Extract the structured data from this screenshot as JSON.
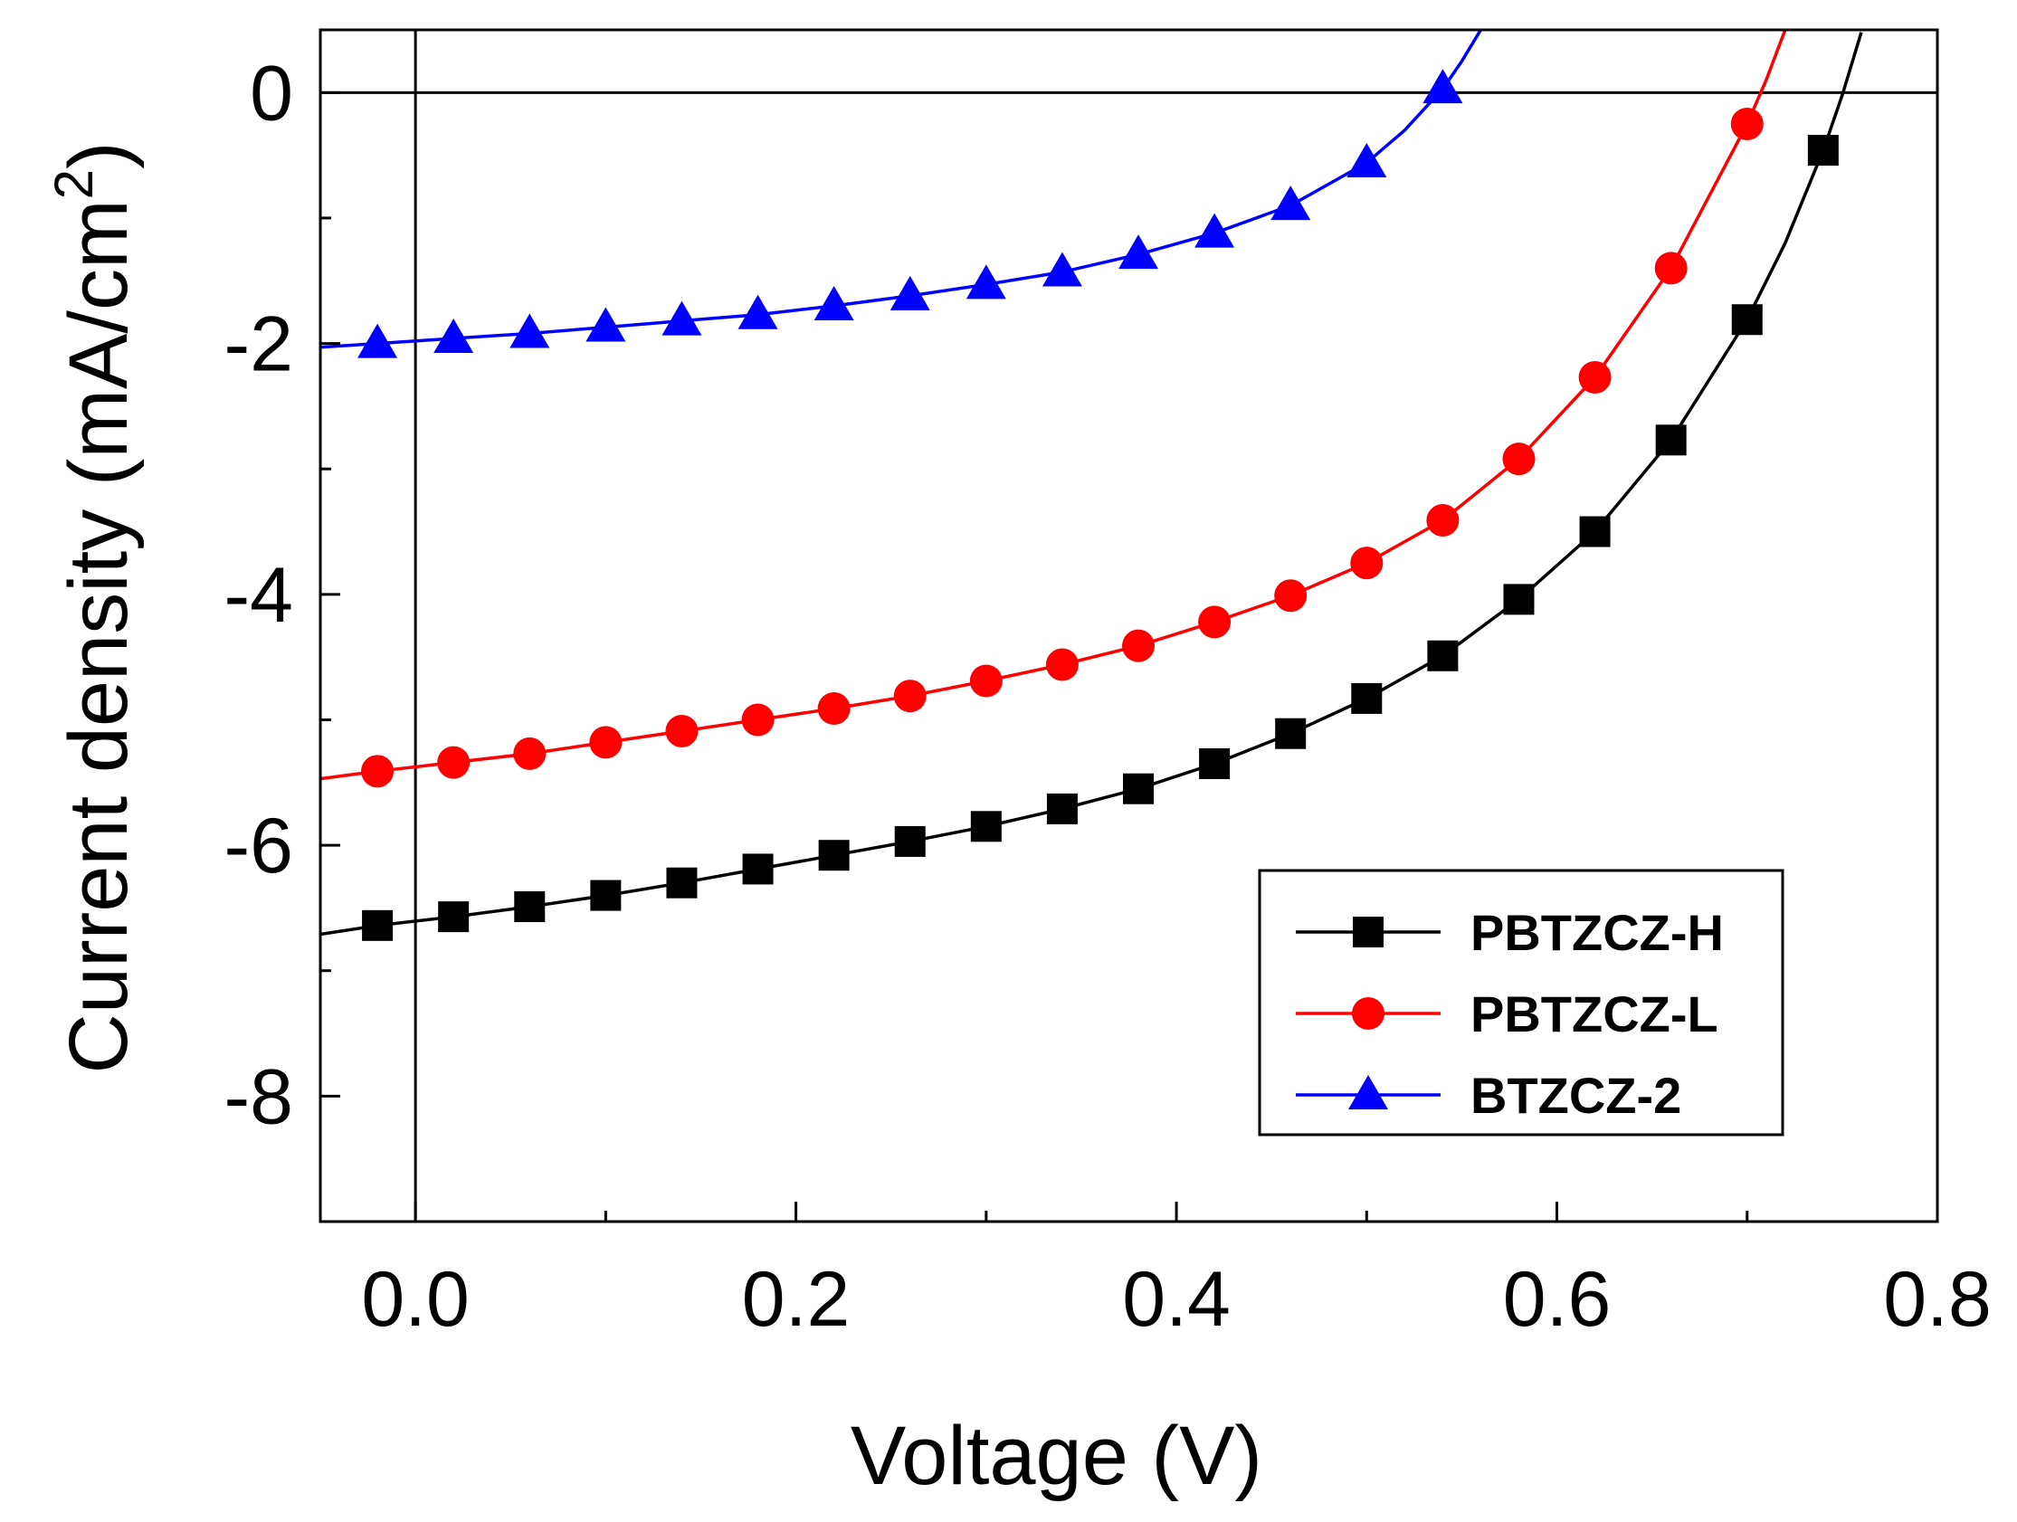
{
  "chart_data": {
    "type": "line",
    "title": "",
    "xlabel": "Voltage (V)",
    "ylabel": "Current density (mA/cm",
    "ylabel_superscript": "2",
    "ylabel_close": ")",
    "xlim": [
      -0.05,
      0.8
    ],
    "ylim": [
      -9,
      0.5
    ],
    "xticks": [
      0.0,
      0.2,
      0.4,
      0.6,
      0.8
    ],
    "xtick_labels": [
      "0.0",
      "0.2",
      "0.4",
      "0.6",
      "0.8"
    ],
    "yticks": [
      0,
      -2,
      -4,
      -6,
      -8
    ],
    "ytick_labels": [
      "0",
      "-2",
      "-4",
      "-6",
      "-8"
    ],
    "grid": false,
    "legend_position": "bottom-right",
    "series": [
      {
        "name": "PBTZCZ-H",
        "color": "#000000",
        "marker": "square",
        "x": [
          -0.02,
          0.02,
          0.06,
          0.1,
          0.14,
          0.18,
          0.22,
          0.26,
          0.3,
          0.34,
          0.38,
          0.42,
          0.46,
          0.5,
          0.54,
          0.58,
          0.62,
          0.66,
          0.7,
          0.74
        ],
        "y": [
          -6.64,
          -6.57,
          -6.49,
          -6.4,
          -6.3,
          -6.19,
          -6.08,
          -5.97,
          -5.85,
          -5.71,
          -5.55,
          -5.35,
          -5.11,
          -4.83,
          -4.49,
          -4.04,
          -3.5,
          -2.77,
          -1.81,
          -0.46
        ],
        "curve_x": [
          -0.05,
          -0.02,
          0.02,
          0.06,
          0.1,
          0.14,
          0.18,
          0.22,
          0.26,
          0.3,
          0.34,
          0.38,
          0.42,
          0.46,
          0.5,
          0.54,
          0.58,
          0.62,
          0.66,
          0.7,
          0.72,
          0.74,
          0.75,
          0.76
        ],
        "curve_y": [
          -6.71,
          -6.64,
          -6.57,
          -6.49,
          -6.4,
          -6.3,
          -6.19,
          -6.08,
          -5.97,
          -5.85,
          -5.71,
          -5.55,
          -5.35,
          -5.11,
          -4.83,
          -4.49,
          -4.04,
          -3.5,
          -2.77,
          -1.81,
          -1.2,
          -0.46,
          -0.02,
          0.48
        ]
      },
      {
        "name": "PBTZCZ-L",
        "color": "#ff0000",
        "marker": "circle",
        "x": [
          -0.02,
          0.02,
          0.06,
          0.1,
          0.14,
          0.18,
          0.22,
          0.26,
          0.3,
          0.34,
          0.38,
          0.42,
          0.46,
          0.5,
          0.54,
          0.58,
          0.62,
          0.66,
          0.7
        ],
        "y": [
          -5.41,
          -5.34,
          -5.27,
          -5.18,
          -5.09,
          -5.0,
          -4.91,
          -4.81,
          -4.69,
          -4.56,
          -4.41,
          -4.22,
          -4.01,
          -3.75,
          -3.41,
          -2.92,
          -2.27,
          -1.4,
          -0.25
        ],
        "curve_x": [
          -0.05,
          -0.02,
          0.02,
          0.06,
          0.1,
          0.14,
          0.18,
          0.22,
          0.26,
          0.3,
          0.34,
          0.38,
          0.42,
          0.46,
          0.5,
          0.54,
          0.58,
          0.62,
          0.66,
          0.7,
          0.71,
          0.72
        ],
        "curve_y": [
          -5.47,
          -5.41,
          -5.34,
          -5.27,
          -5.18,
          -5.09,
          -5.0,
          -4.91,
          -4.81,
          -4.69,
          -4.56,
          -4.41,
          -4.22,
          -4.01,
          -3.75,
          -3.41,
          -2.92,
          -2.27,
          -1.4,
          -0.25,
          0.1,
          0.5
        ]
      },
      {
        "name": "BTZCZ-2",
        "color": "#0000ff",
        "marker": "triangle",
        "x": [
          -0.02,
          0.02,
          0.06,
          0.1,
          0.14,
          0.18,
          0.22,
          0.26,
          0.3,
          0.34,
          0.38,
          0.42,
          0.46,
          0.5,
          0.54
        ],
        "y": [
          -2.0,
          -1.96,
          -1.92,
          -1.87,
          -1.82,
          -1.77,
          -1.7,
          -1.62,
          -1.53,
          -1.43,
          -1.29,
          -1.12,
          -0.9,
          -0.56,
          0.03
        ],
        "curve_x": [
          -0.05,
          -0.02,
          0.02,
          0.06,
          0.1,
          0.14,
          0.18,
          0.22,
          0.26,
          0.3,
          0.34,
          0.38,
          0.42,
          0.46,
          0.5,
          0.52,
          0.54,
          0.55,
          0.56
        ],
        "curve_y": [
          -2.03,
          -2.0,
          -1.96,
          -1.92,
          -1.87,
          -1.82,
          -1.77,
          -1.7,
          -1.62,
          -1.53,
          -1.43,
          -1.29,
          -1.12,
          -0.9,
          -0.56,
          -0.3,
          0.03,
          0.25,
          0.5
        ]
      }
    ]
  }
}
